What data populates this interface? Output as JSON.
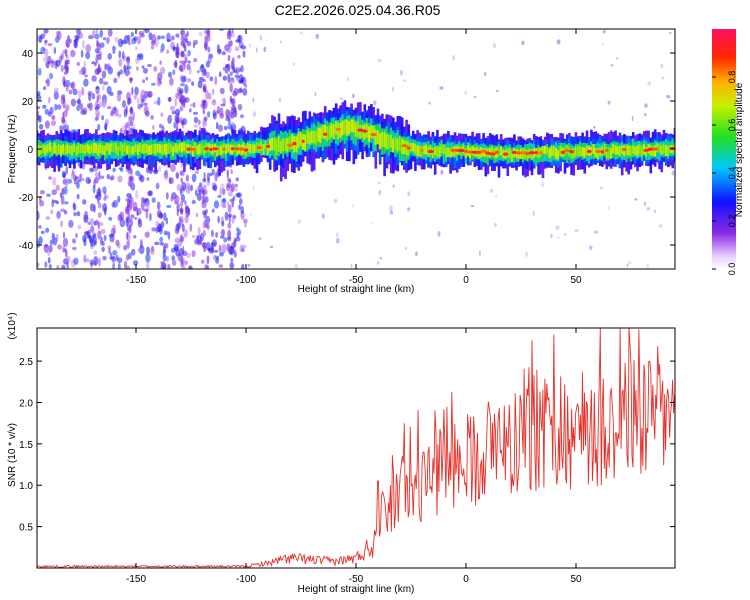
{
  "title": "C2E2.2026.025.04.36.R05",
  "chart_data": [
    {
      "type": "heatmap",
      "xlabel": "Height of straight line (km)",
      "ylabel": "Frequency (Hz)",
      "xlim": [
        -195,
        95
      ],
      "ylim": [
        -50,
        50
      ],
      "xticks": [
        -150,
        -100,
        -50,
        0,
        50
      ],
      "yticks": [
        -40,
        -20,
        0,
        20,
        40
      ],
      "colorbar": {
        "label": "Normalized spectral amplitude",
        "range": [
          0.0,
          1.0
        ],
        "ticks": [
          "0.0",
          "0.2",
          "0.4",
          "0.6",
          "0.8"
        ]
      },
      "center_frequency_trace": {
        "x": [
          -195,
          -150,
          -100,
          -80,
          -65,
          -55,
          -45,
          -35,
          -25,
          -10,
          0,
          20,
          50,
          95
        ],
        "y": [
          0,
          0,
          0,
          2,
          6,
          9,
          7,
          3,
          0,
          -1,
          -1,
          -2,
          -1,
          0
        ]
      }
    },
    {
      "type": "line",
      "xlabel": "Height of straight line (km)",
      "ylabel": "SNR (10 * v/v)",
      "y_multiplier": "(x10⁴)",
      "xlim": [
        -195,
        95
      ],
      "ylim": [
        0,
        2.9
      ],
      "xticks": [
        -150,
        -100,
        -50,
        0,
        50
      ],
      "yticks": [
        0.5,
        1.0,
        1.5,
        2.0,
        2.5
      ],
      "ytick_labels": [
        "0.5",
        "1.0",
        "1.5",
        "2.0",
        "2.5"
      ],
      "line_color": "#e8302a",
      "envelope": {
        "x": [
          -195,
          -100,
          -90,
          -80,
          -70,
          -60,
          -50,
          -42,
          -40,
          -35,
          -30,
          -20,
          -10,
          0,
          10,
          20,
          30,
          40,
          50,
          60,
          70,
          80,
          95
        ],
        "y": [
          0.02,
          0.02,
          0.06,
          0.12,
          0.1,
          0.08,
          0.12,
          0.3,
          0.55,
          0.75,
          0.9,
          1.0,
          1.2,
          1.3,
          1.45,
          1.55,
          1.65,
          1.6,
          1.65,
          1.75,
          1.8,
          1.85,
          1.85
        ]
      },
      "notable_peaks": [
        {
          "x": 70,
          "y": 2.92
        },
        {
          "x": 40,
          "y": 2.82
        },
        {
          "x": 30,
          "y": 2.75
        },
        {
          "x": -10,
          "y": 1.92
        },
        {
          "x": -28,
          "y": 1.75
        },
        {
          "x": -40,
          "y": 1.05
        }
      ]
    }
  ]
}
